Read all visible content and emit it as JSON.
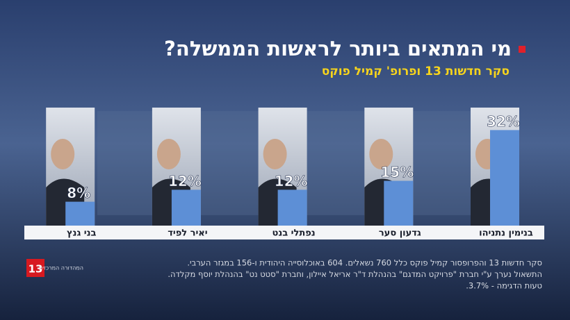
{
  "chart_data": {
    "type": "bar",
    "title": "מי המתאים ביותר לראשות הממשלה?",
    "subtitle": "סקר חדשות 13 ופרופ' קמיל פוקס",
    "categories": [
      "בנימין נתניהו",
      "גדעון סער",
      "נפתלי בנט",
      "יאיר לפיד",
      "בני גנץ"
    ],
    "values": [
      32,
      15,
      12,
      12,
      8
    ],
    "value_labels": [
      "32%",
      "15%",
      "12%",
      "12%",
      "8%"
    ],
    "color": "#5d8fd6",
    "notes": [
      "סקר חדשות 13 והפרופסור קמיל פוקס כלל 760 נשאלים. 604 באוכלוסייה היהודית ו-156 במגזר הערבי.",
      "התשאול נערך ע\"י חברת \"פרויקט המדגם\" בהנהלת ד\"ר אריאל איילון, וחברת \"סטט נט\" בהנהלת יוסף מקלדה.",
      "טעות הדגימה - 3.7%."
    ]
  },
  "logo": {
    "number": "13",
    "text": "המהדורה המרכזית"
  }
}
